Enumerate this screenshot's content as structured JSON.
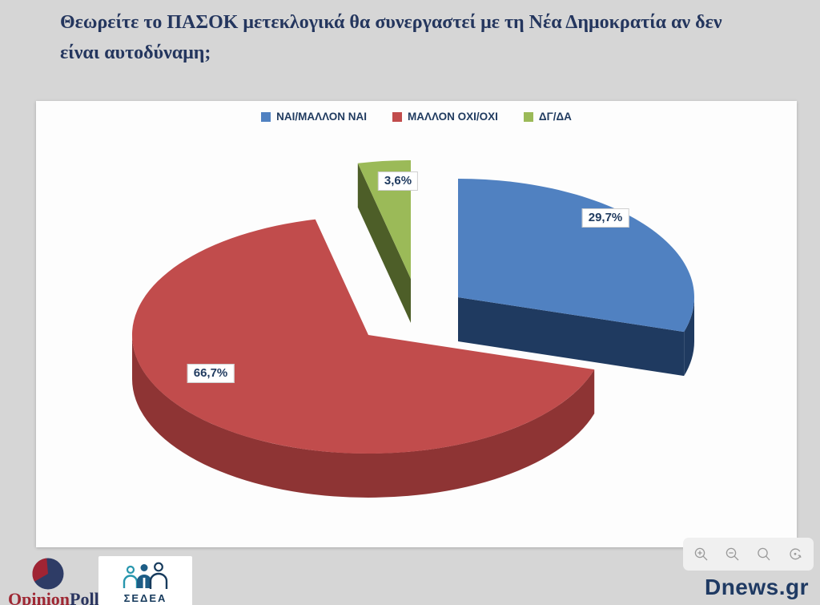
{
  "title": {
    "line1": "Θεωρείτε το ΠΑΣΟΚ μετεκλογικά θα συνεργαστεί με τη Νέα Δημοκρατία αν δεν",
    "line2": "είναι αυτοδύναμη;"
  },
  "chart_data": {
    "type": "pie",
    "style": "3d-exploded",
    "legend_position": "top",
    "label_format": "comma-decimal percent",
    "slices": [
      {
        "label": "ΝΑΙ/ΜΑΛΛΟΝ ΝΑΙ",
        "value": 29.7,
        "display": "29,7%",
        "color": "#5081c1",
        "side_color": "#1f3a60"
      },
      {
        "label": "ΜΑΛΛΟΝ ΟΧΙ/ΟΧΙ",
        "value": 66.7,
        "display": "66,7%",
        "color": "#c14c4c",
        "side_color": "#8e3434"
      },
      {
        "label": "ΔΓ/ΔΑ",
        "value": 3.6,
        "display": "3,6%",
        "color": "#9bba58",
        "side_color": "#4d5e28"
      }
    ]
  },
  "colors": {
    "title_text": "#24365e",
    "label_text": "#1f3a5f",
    "page_background": "#d6d6d6",
    "panel_background": "#fdfdfd"
  },
  "footer": {
    "opinionpoll": {
      "part_red": "Opinion",
      "part_navy": "Poll"
    },
    "sedea": {
      "label": "ΣΕΔΕΑ"
    },
    "brand": "Dnews.gr",
    "toolbar_icons": [
      "zoom-in",
      "zoom-out",
      "search",
      "reset"
    ]
  }
}
